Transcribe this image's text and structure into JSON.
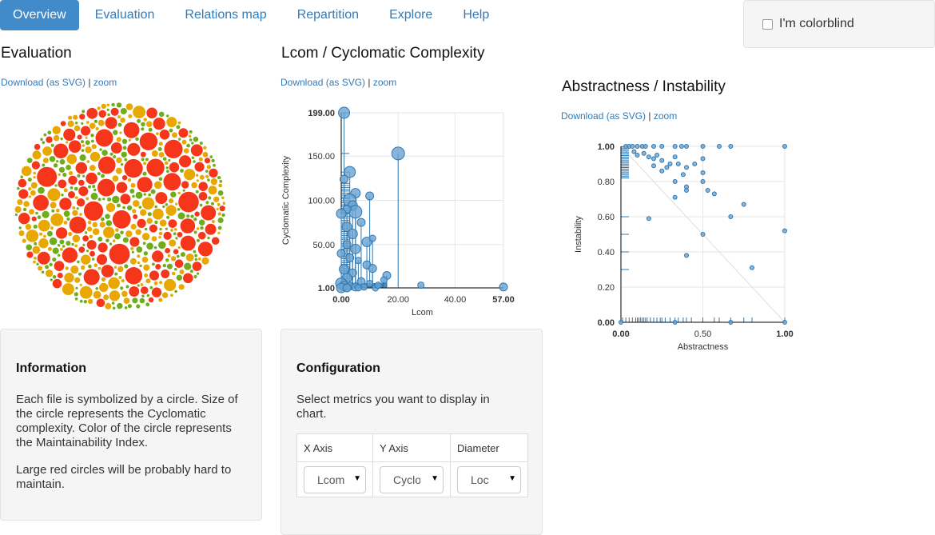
{
  "nav": {
    "items": [
      {
        "label": "Overview",
        "active": true
      },
      {
        "label": "Evaluation"
      },
      {
        "label": "Relations map"
      },
      {
        "label": "Repartition"
      },
      {
        "label": "Explore"
      },
      {
        "label": "Help"
      }
    ]
  },
  "colorblind": {
    "label": "I'm colorblind",
    "checked": false
  },
  "evaluation": {
    "title": "Evaluation",
    "download_label": "Download (as SVG)",
    "separator": "|",
    "zoom_label": "zoom"
  },
  "lcom_chart": {
    "title": "Lcom / Cyclomatic Complexity",
    "download_label": "Download (as SVG)",
    "separator": "|",
    "zoom_label": "zoom"
  },
  "abstractness_chart": {
    "title": "Abstractness / Instability",
    "download_label": "Download (as SVG)",
    "separator": "|",
    "zoom_label": "zoom"
  },
  "information": {
    "heading": "Information",
    "text1": "Each file is symbolized by a circle. Size of the circle represents the Cyclomatic complexity. Color of the circle represents the Maintainability Index.",
    "text2": "Large red circles will be probably hard to maintain."
  },
  "configuration": {
    "heading": "Configuration",
    "text": "Select metrics you want to display in chart.",
    "columns": [
      "X Axis",
      "Y Axis",
      "Diameter"
    ],
    "selects": [
      {
        "value": "Lcom"
      },
      {
        "value": "Cyclomatic Complexity"
      },
      {
        "value": "Loc"
      }
    ]
  },
  "colors": {
    "accent": "#428bca",
    "link": "#337ab7",
    "red": "#f6361a",
    "orange": "#e8a701",
    "green": "#6fae1a",
    "scatter_fill": "#6aa2cf",
    "scatter_stroke": "#2f78b2"
  },
  "chart_data": [
    {
      "type": "scatter",
      "title": "Lcom / Cyclomatic Complexity",
      "xlabel": "Lcom",
      "ylabel": "Cyclomatic Complexity",
      "xlim": [
        0,
        57
      ],
      "ylim": [
        1,
        199
      ],
      "x_ticks": [
        "0.00",
        "20.00",
        "40.00",
        "57.00"
      ],
      "y_ticks": [
        "1.00",
        "50.00",
        "100.00",
        "150.00",
        "199.00"
      ],
      "grid": true,
      "points": [
        {
          "x": 1,
          "y": 199,
          "r": 7
        },
        {
          "x": 20,
          "y": 153,
          "r": 8
        },
        {
          "x": 3,
          "y": 132,
          "r": 7
        },
        {
          "x": 1,
          "y": 124,
          "r": 5
        },
        {
          "x": 5,
          "y": 108,
          "r": 6
        },
        {
          "x": 10,
          "y": 105,
          "r": 5
        },
        {
          "x": 3,
          "y": 100,
          "r": 8
        },
        {
          "x": 4,
          "y": 94,
          "r": 6
        },
        {
          "x": 5,
          "y": 87,
          "r": 8
        },
        {
          "x": 2,
          "y": 90,
          "r": 5
        },
        {
          "x": 0,
          "y": 85,
          "r": 6
        },
        {
          "x": 7,
          "y": 75,
          "r": 5
        },
        {
          "x": 2,
          "y": 70,
          "r": 6
        },
        {
          "x": 4,
          "y": 62,
          "r": 6
        },
        {
          "x": 9,
          "y": 53,
          "r": 6
        },
        {
          "x": 11,
          "y": 57,
          "r": 4
        },
        {
          "x": 2,
          "y": 50,
          "r": 5
        },
        {
          "x": 5,
          "y": 45,
          "r": 6
        },
        {
          "x": 0,
          "y": 40,
          "r": 5
        },
        {
          "x": 3,
          "y": 35,
          "r": 5
        },
        {
          "x": 6,
          "y": 32,
          "r": 4
        },
        {
          "x": 9,
          "y": 27,
          "r": 5
        },
        {
          "x": 11,
          "y": 23,
          "r": 5
        },
        {
          "x": 1,
          "y": 22,
          "r": 6
        },
        {
          "x": 4,
          "y": 18,
          "r": 5
        },
        {
          "x": 16,
          "y": 15,
          "r": 5
        },
        {
          "x": 15,
          "y": 10,
          "r": 4
        },
        {
          "x": 2,
          "y": 12,
          "r": 6
        },
        {
          "x": 7,
          "y": 8,
          "r": 5
        },
        {
          "x": 10,
          "y": 6,
          "r": 4
        },
        {
          "x": 0,
          "y": 6,
          "r": 7
        },
        {
          "x": 1,
          "y": 3,
          "r": 6
        },
        {
          "x": 3,
          "y": 3,
          "r": 5
        },
        {
          "x": 5,
          "y": 2,
          "r": 5
        },
        {
          "x": 8,
          "y": 2,
          "r": 4
        },
        {
          "x": 12,
          "y": 1,
          "r": 4
        },
        {
          "x": 13,
          "y": 4,
          "r": 4
        },
        {
          "x": 28,
          "y": 4,
          "r": 4
        },
        {
          "x": 57,
          "y": 2,
          "r": 5
        },
        {
          "x": 0,
          "y": 1,
          "r": 6
        },
        {
          "x": 2,
          "y": 1,
          "r": 5
        },
        {
          "x": 6,
          "y": 1,
          "r": 4
        }
      ]
    },
    {
      "type": "scatter",
      "title": "Abstractness / Instability",
      "xlabel": "Abstractness",
      "ylabel": "Instability",
      "xlim": [
        0,
        1
      ],
      "ylim": [
        0,
        1
      ],
      "x_ticks": [
        "0.00",
        "0.50",
        "1.00"
      ],
      "y_ticks": [
        "0.00",
        "0.20",
        "0.40",
        "0.60",
        "0.80",
        "1.00"
      ],
      "grid": true,
      "points": [
        {
          "x": 0.03,
          "y": 1.0
        },
        {
          "x": 0.05,
          "y": 1.0
        },
        {
          "x": 0.07,
          "y": 1.0
        },
        {
          "x": 0.1,
          "y": 1.0
        },
        {
          "x": 0.13,
          "y": 1.0
        },
        {
          "x": 0.15,
          "y": 1.0
        },
        {
          "x": 0.2,
          "y": 1.0
        },
        {
          "x": 0.25,
          "y": 1.0
        },
        {
          "x": 0.33,
          "y": 1.0
        },
        {
          "x": 0.37,
          "y": 1.0
        },
        {
          "x": 0.4,
          "y": 1.0
        },
        {
          "x": 0.5,
          "y": 1.0
        },
        {
          "x": 0.6,
          "y": 1.0
        },
        {
          "x": 0.67,
          "y": 1.0
        },
        {
          "x": 1.0,
          "y": 1.0
        },
        {
          "x": 0.08,
          "y": 0.97
        },
        {
          "x": 0.1,
          "y": 0.95
        },
        {
          "x": 0.14,
          "y": 0.96
        },
        {
          "x": 0.17,
          "y": 0.94
        },
        {
          "x": 0.2,
          "y": 0.93
        },
        {
          "x": 0.22,
          "y": 0.95
        },
        {
          "x": 0.25,
          "y": 0.92
        },
        {
          "x": 0.3,
          "y": 0.9
        },
        {
          "x": 0.33,
          "y": 0.94
        },
        {
          "x": 0.35,
          "y": 0.9
        },
        {
          "x": 0.4,
          "y": 0.88
        },
        {
          "x": 0.45,
          "y": 0.9
        },
        {
          "x": 0.5,
          "y": 0.93
        },
        {
          "x": 0.2,
          "y": 0.89
        },
        {
          "x": 0.25,
          "y": 0.86
        },
        {
          "x": 0.28,
          "y": 0.88
        },
        {
          "x": 0.38,
          "y": 0.84
        },
        {
          "x": 0.5,
          "y": 0.85
        },
        {
          "x": 0.33,
          "y": 0.8
        },
        {
          "x": 0.4,
          "y": 0.77
        },
        {
          "x": 0.5,
          "y": 0.8
        },
        {
          "x": 0.33,
          "y": 0.71
        },
        {
          "x": 0.4,
          "y": 0.75
        },
        {
          "x": 0.53,
          "y": 0.75
        },
        {
          "x": 0.57,
          "y": 0.73
        },
        {
          "x": 0.75,
          "y": 0.67
        },
        {
          "x": 0.17,
          "y": 0.59
        },
        {
          "x": 0.67,
          "y": 0.6
        },
        {
          "x": 1.0,
          "y": 0.52
        },
        {
          "x": 0.5,
          "y": 0.5
        },
        {
          "x": 0.4,
          "y": 0.38
        },
        {
          "x": 0.8,
          "y": 0.31
        },
        {
          "x": 0.0,
          "y": 0.0
        },
        {
          "x": 0.33,
          "y": 0.0
        },
        {
          "x": 0.67,
          "y": 0.0
        },
        {
          "x": 1.0,
          "y": 0.0
        }
      ]
    }
  ]
}
